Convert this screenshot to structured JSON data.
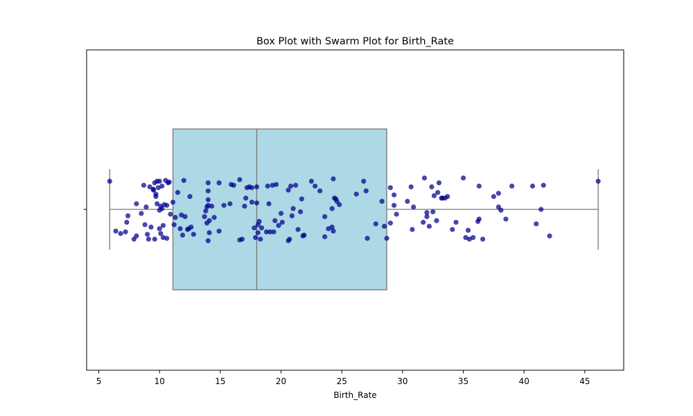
{
  "chart_data": {
    "type": "box-swarm",
    "title": "Box Plot with Swarm Plot for Birth_Rate",
    "xlabel": "Birth_Rate",
    "ylabel": "",
    "xlim": [
      4.0,
      48.2
    ],
    "xticks": [
      5,
      10,
      15,
      20,
      25,
      30,
      35,
      40,
      45
    ],
    "grid": false,
    "box": {
      "min": 5.9,
      "q1": 11.1,
      "median": 18.0,
      "q3": 28.7,
      "max": 46.1,
      "fill_color": "#add8e6",
      "line_color": "#777777"
    },
    "points_color": "#00008b",
    "points": [
      {
        "x": 5.9,
        "y": 0.35
      },
      {
        "x": 6.4,
        "y": -0.27
      },
      {
        "x": 6.8,
        "y": -0.3
      },
      {
        "x": 7.2,
        "y": -0.28
      },
      {
        "x": 7.3,
        "y": -0.16
      },
      {
        "x": 7.4,
        "y": -0.08
      },
      {
        "x": 7.9,
        "y": -0.37
      },
      {
        "x": 8.1,
        "y": -0.33
      },
      {
        "x": 8.1,
        "y": 0.07
      },
      {
        "x": 8.5,
        "y": -0.05
      },
      {
        "x": 8.7,
        "y": 0.3
      },
      {
        "x": 8.8,
        "y": -0.19
      },
      {
        "x": 8.9,
        "y": 0.03
      },
      {
        "x": 9.0,
        "y": -0.31
      },
      {
        "x": 9.1,
        "y": -0.37
      },
      {
        "x": 9.2,
        "y": 0.28
      },
      {
        "x": 9.3,
        "y": -0.22
      },
      {
        "x": 9.5,
        "y": 0.24
      },
      {
        "x": 9.5,
        "y": 0.25
      },
      {
        "x": 9.6,
        "y": -0.37
      },
      {
        "x": 9.6,
        "y": 0.33
      },
      {
        "x": 9.7,
        "y": 0.16
      },
      {
        "x": 9.7,
        "y": 0.19
      },
      {
        "x": 9.8,
        "y": 0.35
      },
      {
        "x": 9.8,
        "y": 0.07
      },
      {
        "x": 9.9,
        "y": 0.27
      },
      {
        "x": 10.0,
        "y": -0.24
      },
      {
        "x": 10.0,
        "y": 0.35
      },
      {
        "x": 10.0,
        "y": -0.01
      },
      {
        "x": 10.1,
        "y": 0.04
      },
      {
        "x": 10.1,
        "y": -0.3
      },
      {
        "x": 10.2,
        "y": 0.29
      },
      {
        "x": 10.2,
        "y": 0.01
      },
      {
        "x": 10.3,
        "y": -0.2
      },
      {
        "x": 10.3,
        "y": -0.35
      },
      {
        "x": 10.4,
        "y": 0.06
      },
      {
        "x": 10.5,
        "y": 0.36
      },
      {
        "x": 10.6,
        "y": -0.36
      },
      {
        "x": 10.6,
        "y": 0.05
      },
      {
        "x": 10.7,
        "y": 0.33
      },
      {
        "x": 10.8,
        "y": 0.34
      },
      {
        "x": 10.9,
        "y": -0.06
      },
      {
        "x": 11.1,
        "y": 0.09
      },
      {
        "x": 11.2,
        "y": -0.19
      },
      {
        "x": 11.3,
        "y": -0.1
      },
      {
        "x": 11.5,
        "y": 0.21
      },
      {
        "x": 11.7,
        "y": -0.24
      },
      {
        "x": 11.8,
        "y": -0.07
      },
      {
        "x": 11.9,
        "y": -0.32
      },
      {
        "x": 12.0,
        "y": 0.36
      },
      {
        "x": 12.1,
        "y": -0.09
      },
      {
        "x": 12.3,
        "y": -0.25
      },
      {
        "x": 12.4,
        "y": -0.24
      },
      {
        "x": 12.5,
        "y": 0.16
      },
      {
        "x": 12.6,
        "y": -0.22
      },
      {
        "x": 12.8,
        "y": -0.31
      },
      {
        "x": 13.7,
        "y": -0.09
      },
      {
        "x": 13.8,
        "y": -0.02
      },
      {
        "x": 13.9,
        "y": 0.03
      },
      {
        "x": 13.9,
        "y": -0.17
      },
      {
        "x": 14.0,
        "y": 0.05
      },
      {
        "x": 14.0,
        "y": 0.12
      },
      {
        "x": 14.0,
        "y": 0.33
      },
      {
        "x": 14.0,
        "y": -0.39
      },
      {
        "x": 14.0,
        "y": 0.23
      },
      {
        "x": 14.1,
        "y": -0.14
      },
      {
        "x": 14.1,
        "y": -0.29
      },
      {
        "x": 14.3,
        "y": 0.04
      },
      {
        "x": 14.5,
        "y": -0.1
      },
      {
        "x": 14.9,
        "y": -0.27
      },
      {
        "x": 14.9,
        "y": 0.33
      },
      {
        "x": 15.3,
        "y": 0.05
      },
      {
        "x": 15.8,
        "y": 0.07
      },
      {
        "x": 15.9,
        "y": 0.31
      },
      {
        "x": 16.1,
        "y": 0.3
      },
      {
        "x": 16.6,
        "y": 0.37
      },
      {
        "x": 16.6,
        "y": -0.38
      },
      {
        "x": 16.8,
        "y": -0.37
      },
      {
        "x": 17.0,
        "y": 0.04
      },
      {
        "x": 17.1,
        "y": 0.14
      },
      {
        "x": 17.2,
        "y": 0.27
      },
      {
        "x": 17.4,
        "y": 0.28
      },
      {
        "x": 17.6,
        "y": 0.27
      },
      {
        "x": 17.6,
        "y": 0.09
      },
      {
        "x": 17.8,
        "y": -0.23
      },
      {
        "x": 17.9,
        "y": -0.35
      },
      {
        "x": 18.0,
        "y": 0.28
      },
      {
        "x": 18.0,
        "y": 0.08
      },
      {
        "x": 18.1,
        "y": -0.19
      },
      {
        "x": 18.1,
        "y": -0.29
      },
      {
        "x": 18.2,
        "y": -0.15
      },
      {
        "x": 18.3,
        "y": -0.37
      },
      {
        "x": 18.4,
        "y": -0.23
      },
      {
        "x": 18.8,
        "y": -0.28
      },
      {
        "x": 18.9,
        "y": 0.29
      },
      {
        "x": 19.0,
        "y": 0.07
      },
      {
        "x": 19.1,
        "y": -0.28
      },
      {
        "x": 19.3,
        "y": 0.3
      },
      {
        "x": 19.4,
        "y": -0.28
      },
      {
        "x": 19.5,
        "y": -0.14
      },
      {
        "x": 19.6,
        "y": 0.31
      },
      {
        "x": 19.8,
        "y": -0.2
      },
      {
        "x": 20.0,
        "y": -0.05
      },
      {
        "x": 20.1,
        "y": -0.16
      },
      {
        "x": 20.6,
        "y": 0.24
      },
      {
        "x": 20.6,
        "y": -0.39
      },
      {
        "x": 20.7,
        "y": -0.37
      },
      {
        "x": 20.8,
        "y": 0.29
      },
      {
        "x": 20.9,
        "y": -0.08
      },
      {
        "x": 21.0,
        "y": 0.01
      },
      {
        "x": 21.2,
        "y": 0.3
      },
      {
        "x": 21.4,
        "y": -0.25
      },
      {
        "x": 21.6,
        "y": -0.03
      },
      {
        "x": 21.7,
        "y": 0.13
      },
      {
        "x": 21.8,
        "y": -0.33
      },
      {
        "x": 21.9,
        "y": -0.32
      },
      {
        "x": 22.5,
        "y": 0.35
      },
      {
        "x": 22.8,
        "y": 0.29
      },
      {
        "x": 23.2,
        "y": 0.23
      },
      {
        "x": 23.6,
        "y": -0.09
      },
      {
        "x": 23.9,
        "y": -0.24
      },
      {
        "x": 23.6,
        "y": -0.34
      },
      {
        "x": 24.2,
        "y": -0.22
      },
      {
        "x": 24.2,
        "y": 0.01
      },
      {
        "x": 24.3,
        "y": 0.38
      },
      {
        "x": 24.3,
        "y": -0.27
      },
      {
        "x": 24.4,
        "y": 0.14
      },
      {
        "x": 24.5,
        "y": 0.13
      },
      {
        "x": 24.6,
        "y": 0.1
      },
      {
        "x": 24.8,
        "y": 0.06
      },
      {
        "x": 26.2,
        "y": 0.19
      },
      {
        "x": 26.8,
        "y": 0.35
      },
      {
        "x": 27.0,
        "y": 0.23
      },
      {
        "x": 27.1,
        "y": -0.36
      },
      {
        "x": 27.8,
        "y": -0.18
      },
      {
        "x": 28.3,
        "y": 0.1
      },
      {
        "x": 28.5,
        "y": -0.21
      },
      {
        "x": 28.7,
        "y": -0.36
      },
      {
        "x": 29.0,
        "y": 0.27
      },
      {
        "x": 29.0,
        "y": -0.17
      },
      {
        "x": 29.3,
        "y": 0.05
      },
      {
        "x": 29.3,
        "y": 0.18
      },
      {
        "x": 29.5,
        "y": -0.06
      },
      {
        "x": 30.4,
        "y": 0.1
      },
      {
        "x": 30.7,
        "y": 0.28
      },
      {
        "x": 30.8,
        "y": -0.25
      },
      {
        "x": 30.9,
        "y": 0.03
      },
      {
        "x": 31.7,
        "y": -0.16
      },
      {
        "x": 31.8,
        "y": 0.39
      },
      {
        "x": 32.0,
        "y": -0.04
      },
      {
        "x": 32.0,
        "y": -0.09
      },
      {
        "x": 32.2,
        "y": -0.21
      },
      {
        "x": 32.5,
        "y": -0.03
      },
      {
        "x": 32.4,
        "y": 0.28
      },
      {
        "x": 32.6,
        "y": 0.17
      },
      {
        "x": 32.8,
        "y": -0.14
      },
      {
        "x": 32.9,
        "y": 0.21
      },
      {
        "x": 33.0,
        "y": 0.33
      },
      {
        "x": 33.2,
        "y": 0.14
      },
      {
        "x": 33.3,
        "y": 0.14
      },
      {
        "x": 33.5,
        "y": 0.14
      },
      {
        "x": 33.7,
        "y": 0.16
      },
      {
        "x": 34.1,
        "y": -0.25
      },
      {
        "x": 34.4,
        "y": -0.16
      },
      {
        "x": 35.0,
        "y": 0.39
      },
      {
        "x": 35.2,
        "y": -0.35
      },
      {
        "x": 35.4,
        "y": -0.26
      },
      {
        "x": 35.5,
        "y": -0.37
      },
      {
        "x": 35.8,
        "y": -0.35
      },
      {
        "x": 36.2,
        "y": -0.15
      },
      {
        "x": 36.3,
        "y": 0.29
      },
      {
        "x": 36.3,
        "y": -0.12
      },
      {
        "x": 36.6,
        "y": -0.37
      },
      {
        "x": 37.5,
        "y": 0.16
      },
      {
        "x": 37.9,
        "y": 0.2
      },
      {
        "x": 37.9,
        "y": 0.03
      },
      {
        "x": 38.1,
        "y": -0.01
      },
      {
        "x": 38.5,
        "y": -0.12
      },
      {
        "x": 39.0,
        "y": 0.29
      },
      {
        "x": 40.7,
        "y": 0.29
      },
      {
        "x": 41.0,
        "y": -0.18
      },
      {
        "x": 41.6,
        "y": 0.3
      },
      {
        "x": 41.4,
        "y": 0.0
      },
      {
        "x": 42.1,
        "y": -0.33
      },
      {
        "x": 46.1,
        "y": 0.35
      }
    ]
  }
}
